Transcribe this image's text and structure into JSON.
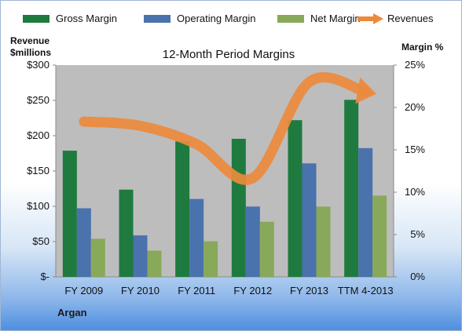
{
  "chart_data": {
    "type": "bar",
    "title": "12-Month Period Margins",
    "ylabel_left": [
      "Revenue",
      "$millions"
    ],
    "ylabel_right": "Margin %",
    "categories": [
      "FY 2009",
      "FY 2010",
      "FY 2011",
      "FY 2012",
      "FY 2013",
      "TTM 4-2013"
    ],
    "left_axis": {
      "ylim": [
        0,
        300
      ],
      "ticks": [
        "$-",
        "$50",
        "$100",
        "$150",
        "$200",
        "$250",
        "$300"
      ]
    },
    "right_axis": {
      "ylim": [
        0,
        25
      ],
      "ticks": [
        "0%",
        "5%",
        "10%",
        "15%",
        "20%",
        "25%"
      ]
    },
    "series": [
      {
        "name": "Gross Margin",
        "axis": "right",
        "color": "#1f7a3f",
        "values": [
          14.9,
          10.3,
          16.0,
          16.3,
          18.5,
          20.9
        ]
      },
      {
        "name": "Operating Margin",
        "axis": "right",
        "color": "#4a72ad",
        "values": [
          8.1,
          4.9,
          9.2,
          8.3,
          13.4,
          15.2
        ]
      },
      {
        "name": "Net Margin",
        "axis": "right",
        "color": "#88a95a",
        "values": [
          4.5,
          3.1,
          4.2,
          6.5,
          8.3,
          9.6
        ]
      },
      {
        "name": "Revenues",
        "axis": "left",
        "type": "line-arrow",
        "color": "#ec8a3c",
        "values": [
          220,
          214,
          188,
          140,
          276,
          262
        ]
      }
    ],
    "legend_position": "top",
    "grid": false
  },
  "footer": {
    "label": "Argan"
  }
}
